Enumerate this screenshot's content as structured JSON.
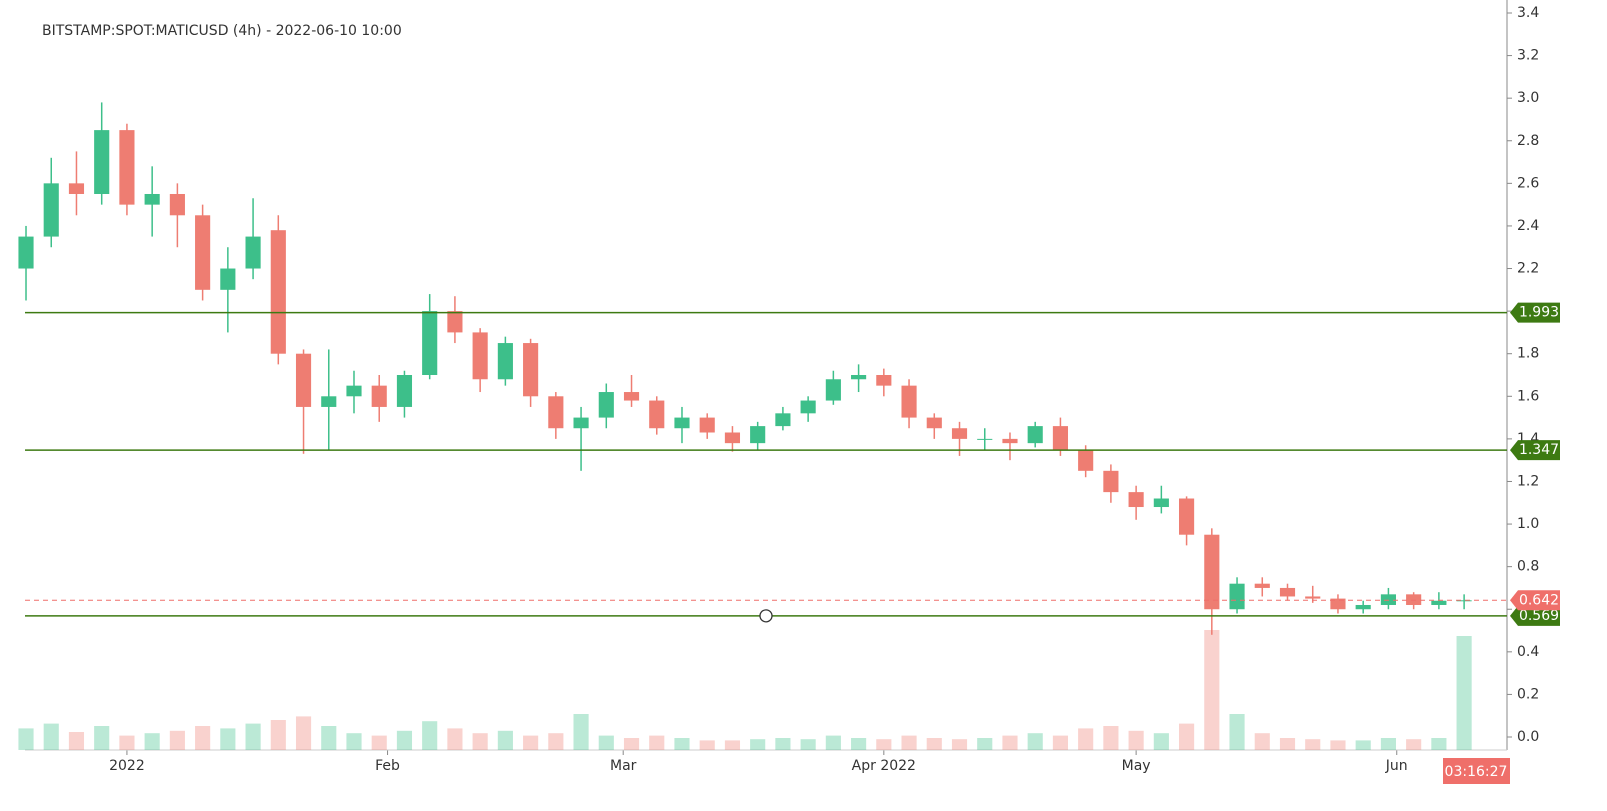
{
  "chart_data": {
    "type": "candlestick",
    "title": "BITSTAMP:SPOT:MATICUSD (4h) - 2022-06-10 10:00",
    "open": [
      2.2,
      2.35,
      2.6,
      2.55,
      2.85,
      2.5,
      2.55,
      2.45,
      2.1,
      2.2,
      2.38,
      1.8,
      1.55,
      1.6,
      1.65,
      1.55,
      1.7,
      2.0,
      1.9,
      1.68,
      1.85,
      1.6,
      1.45,
      1.5,
      1.62,
      1.58,
      1.45,
      1.5,
      1.43,
      1.38,
      1.46,
      1.52,
      1.58,
      1.68,
      1.7,
      1.65,
      1.5,
      1.45,
      1.4,
      1.4,
      1.38,
      1.46,
      1.35,
      1.25,
      1.15,
      1.08,
      1.12,
      0.95,
      0.6,
      0.72,
      0.7,
      0.66,
      0.65,
      0.6,
      0.62,
      0.67,
      0.62,
      0.64
    ],
    "high": [
      2.4,
      2.72,
      2.75,
      2.98,
      2.88,
      2.68,
      2.6,
      2.5,
      2.3,
      2.53,
      2.45,
      1.82,
      1.82,
      1.72,
      1.7,
      1.72,
      2.08,
      2.07,
      1.92,
      1.88,
      1.87,
      1.62,
      1.55,
      1.66,
      1.7,
      1.6,
      1.55,
      1.52,
      1.46,
      1.48,
      1.55,
      1.6,
      1.72,
      1.75,
      1.73,
      1.68,
      1.52,
      1.48,
      1.45,
      1.43,
      1.48,
      1.5,
      1.37,
      1.28,
      1.18,
      1.18,
      1.13,
      0.98,
      0.75,
      0.75,
      0.72,
      0.71,
      0.67,
      0.64,
      0.7,
      0.68,
      0.68,
      0.67
    ],
    "low": [
      2.05,
      2.3,
      2.45,
      2.5,
      2.45,
      2.35,
      2.3,
      2.05,
      1.9,
      2.15,
      1.75,
      1.33,
      1.35,
      1.52,
      1.48,
      1.5,
      1.68,
      1.85,
      1.62,
      1.65,
      1.55,
      1.4,
      1.25,
      1.45,
      1.55,
      1.42,
      1.38,
      1.4,
      1.34,
      1.35,
      1.44,
      1.48,
      1.56,
      1.62,
      1.6,
      1.45,
      1.4,
      1.32,
      1.35,
      1.3,
      1.36,
      1.32,
      1.22,
      1.1,
      1.02,
      1.05,
      0.9,
      0.48,
      0.58,
      0.66,
      0.64,
      0.63,
      0.58,
      0.58,
      0.6,
      0.6,
      0.6,
      0.6
    ],
    "close": [
      2.35,
      2.6,
      2.55,
      2.85,
      2.5,
      2.55,
      2.45,
      2.1,
      2.2,
      2.35,
      1.8,
      1.55,
      1.6,
      1.65,
      1.55,
      1.7,
      2.0,
      1.9,
      1.68,
      1.85,
      1.6,
      1.45,
      1.5,
      1.62,
      1.58,
      1.45,
      1.5,
      1.43,
      1.38,
      1.46,
      1.52,
      1.58,
      1.68,
      1.7,
      1.65,
      1.5,
      1.45,
      1.4,
      1.4,
      1.38,
      1.46,
      1.35,
      1.25,
      1.15,
      1.08,
      1.12,
      0.95,
      0.6,
      0.72,
      0.7,
      0.66,
      0.65,
      0.6,
      0.62,
      0.67,
      0.62,
      0.64,
      0.642
    ],
    "volume": [
      18,
      22,
      15,
      20,
      12,
      14,
      16,
      20,
      18,
      22,
      25,
      28,
      20,
      14,
      12,
      16,
      24,
      18,
      14,
      16,
      12,
      14,
      30,
      12,
      10,
      12,
      10,
      8,
      8,
      9,
      10,
      9,
      12,
      10,
      9,
      12,
      10,
      9,
      10,
      12,
      14,
      12,
      18,
      20,
      16,
      14,
      22,
      100,
      30,
      14,
      10,
      9,
      8,
      8,
      10,
      9,
      10,
      95
    ],
    "up_color": "#3dbf8a",
    "down_color": "#ee7d72",
    "xlim": [
      -0.04,
      58.7
    ],
    "xticks": [
      {
        "value": 4,
        "label": "2022"
      },
      {
        "value": 14.33,
        "label": "Feb"
      },
      {
        "value": 23.67,
        "label": "Mar"
      },
      {
        "value": 34,
        "label": "Apr 2022"
      },
      {
        "value": 44,
        "label": "May"
      },
      {
        "value": 54.33,
        "label": "Jun"
      }
    ],
    "ylim": [
      -0.061,
      3.461
    ],
    "yticks": [
      {
        "value": 0,
        "label": "0.0"
      },
      0.2,
      0.4,
      0.6,
      0.8,
      {
        "value": 1,
        "label": "1.0"
      },
      1.2,
      1.4,
      1.6,
      1.8,
      {
        "value": 2,
        "label": "2.0"
      },
      2.2,
      2.4,
      2.6,
      2.8,
      {
        "value": 3,
        "label": "3.0"
      },
      3.2,
      3.4
    ],
    "levels": [
      {
        "value": 1.993,
        "color": "#3d7a12"
      },
      {
        "value": 1.347,
        "color": "#3d7a12"
      },
      {
        "value": 0.569,
        "color": "#3d7a12"
      }
    ],
    "last_price": {
      "value": 0.642,
      "color": "#ef6f6a"
    },
    "countdown": "03:16:27"
  }
}
